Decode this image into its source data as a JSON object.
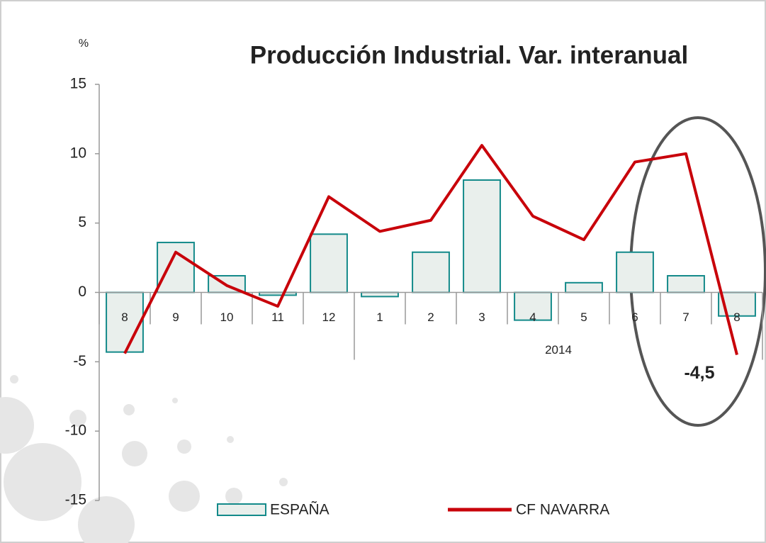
{
  "chart_data": {
    "type": "bar-line",
    "title": "Producción Industrial. Var. interanual",
    "y_unit": "%",
    "categories": [
      "8",
      "9",
      "10",
      "11",
      "12",
      "1",
      "2",
      "3",
      "4",
      "5",
      "6",
      "7",
      "8"
    ],
    "group_label": "2014",
    "series": [
      {
        "name": "ESPAÑA",
        "type": "bar",
        "color": "#e9efec",
        "edge_color": "#138a8a",
        "values": [
          -4.3,
          3.6,
          1.2,
          -0.2,
          4.2,
          -0.3,
          2.9,
          8.1,
          -2.0,
          0.7,
          2.9,
          1.2,
          -1.7
        ]
      },
      {
        "name": "CF NAVARRA",
        "type": "line",
        "color": "#c8000a",
        "values": [
          -4.4,
          2.9,
          0.5,
          -1.0,
          6.9,
          4.4,
          5.2,
          10.6,
          5.5,
          3.8,
          9.4,
          10.0,
          -4.5
        ],
        "value_labels": [
          null,
          null,
          null,
          null,
          null,
          null,
          null,
          null,
          null,
          null,
          null,
          null,
          "-4,5"
        ]
      }
    ],
    "ylim": [
      -15,
      15
    ],
    "yticks": [
      -15,
      -10,
      -5,
      0,
      5,
      10,
      15
    ]
  }
}
